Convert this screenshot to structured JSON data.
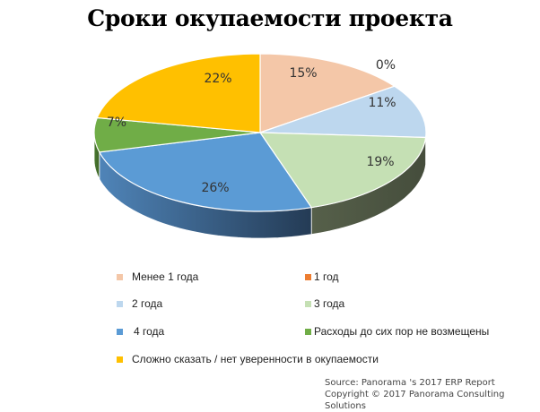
{
  "chart_data": {
    "type": "pie",
    "variant": "3d",
    "title": "Сроки окупаемости проекта",
    "categories": [
      "Менее 1 года",
      "1 год",
      "2 года",
      "3 года",
      "4 года",
      "Расходы до сих пор не возмещены",
      "Сложно сказать / нет уверенности в окупаемости"
    ],
    "values": [
      15,
      0,
      11,
      19,
      26,
      7,
      22
    ],
    "labels": [
      "15%",
      "0%",
      "11%",
      "19%",
      "26%",
      "7%",
      "22%"
    ],
    "colors": [
      "#F4C7A8",
      "#ED7D31",
      "#BDD7EE",
      "#C5E0B4",
      "#5B9BD5",
      "#70AD47",
      "#FFC000"
    ],
    "start_angle": "12 o'clock",
    "direction": "clockwise",
    "legend_position": "bottom"
  },
  "title": "Сроки окупаемости проекта",
  "legend": [
    {
      "label": "Менее 1 года",
      "color": "#F4C7A8"
    },
    {
      "label": "1 год",
      "color": "#ED7D31"
    },
    {
      "label": "2 года",
      "color": "#BDD7EE"
    },
    {
      "label": "3 года",
      "color": "#C5E0B4"
    },
    {
      "label": "4 года",
      "color": "#5B9BD5"
    },
    {
      "label": "Расходы до сих пор не возмещены",
      "color": "#70AD47"
    },
    {
      "label": "Сложно сказать / нет уверенности в окупаемости",
      "color": "#FFC000"
    }
  ],
  "source": {
    "line1": "Source: Panorama 's 2017 ERP Report",
    "line2": "Copyright © 2017 Panorama Consulting Solutions"
  }
}
